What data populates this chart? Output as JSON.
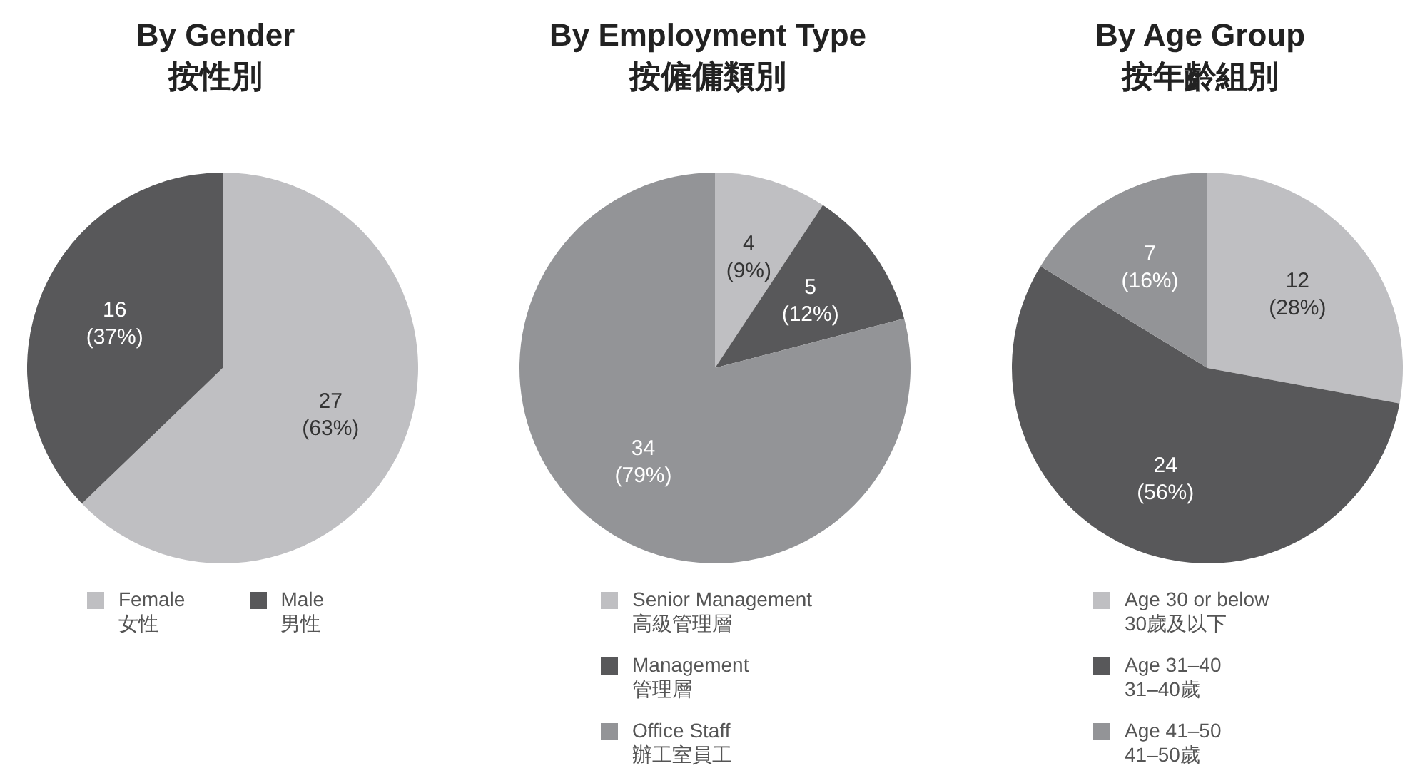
{
  "chart_data": [
    {
      "type": "pie",
      "title": "By Gender",
      "subtitle": "按性別",
      "categories": [
        "Female\n女性",
        "Male\n男性"
      ],
      "values": [
        27,
        16
      ],
      "colors": [
        "#bfbfc2",
        "#58585a"
      ],
      "value_labels": [
        "27\n(63%)",
        "16\n(37%)"
      ],
      "legend": "bottom"
    },
    {
      "type": "pie",
      "title": "By Employment Type",
      "subtitle": "按僱傭類別",
      "categories": [
        "Senior Management\n高級管理層",
        "Management\n管理層",
        "Office Staff\n辦工室員工"
      ],
      "values": [
        4,
        5,
        34
      ],
      "colors": [
        "#bfbfc2",
        "#58585a",
        "#939497"
      ],
      "value_labels": [
        "4\n(9%)",
        "5\n(12%)",
        "34\n(79%)"
      ],
      "legend": "bottom"
    },
    {
      "type": "pie",
      "title": "By Age Group",
      "subtitle": "按年齡組別",
      "categories": [
        "Age 30 or below\n30歲及以下",
        "Age 31–40\n31–40歲",
        "Age 41–50\n41–50歲"
      ],
      "values": [
        12,
        24,
        7
      ],
      "colors": [
        "#bfbfc2",
        "#58585a",
        "#939497"
      ],
      "value_labels": [
        "12\n(28%)",
        "24\n(56%)",
        "7\n(16%)"
      ],
      "legend": "bottom"
    }
  ]
}
